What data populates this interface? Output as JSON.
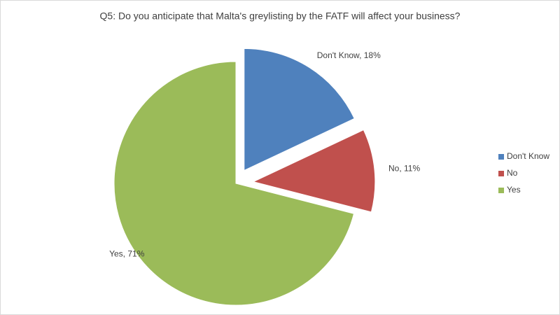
{
  "chart_data": {
    "type": "pie",
    "title": "Q5: Do you anticipate that Malta's greylisting by the FATF will affect your business?",
    "categories": [
      "Don't Know",
      "No",
      "Yes"
    ],
    "values": [
      18,
      11,
      71
    ],
    "value_labels": [
      "Don't Know, 18%",
      "No, 11%",
      "Yes, 71%"
    ],
    "colors": [
      "#4f81bd",
      "#c0504d",
      "#9bbb59"
    ],
    "legend": "right"
  }
}
